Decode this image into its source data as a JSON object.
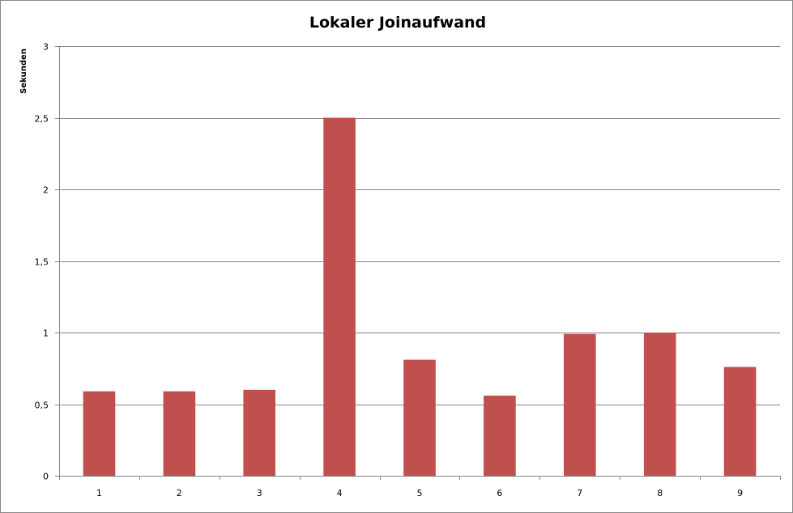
{
  "chart_data": {
    "type": "bar",
    "title": "Lokaler Joinaufwand",
    "xlabel": "",
    "ylabel": "Sekunden",
    "categories": [
      "1",
      "2",
      "3",
      "4",
      "5",
      "6",
      "7",
      "8",
      "9"
    ],
    "values": [
      0.59,
      0.59,
      0.6,
      2.5,
      0.81,
      0.56,
      0.99,
      1.0,
      0.76
    ],
    "ylim": [
      0,
      3
    ],
    "yticks": [
      0,
      0.5,
      1,
      1.5,
      2,
      2.5,
      3
    ],
    "ytick_labels": [
      "0",
      "0,5",
      "1",
      "1,5",
      "2",
      "2,5",
      "3"
    ],
    "grid": true,
    "legend": "none",
    "bar_color": "#C0504D",
    "gridline_color": "#868686"
  }
}
